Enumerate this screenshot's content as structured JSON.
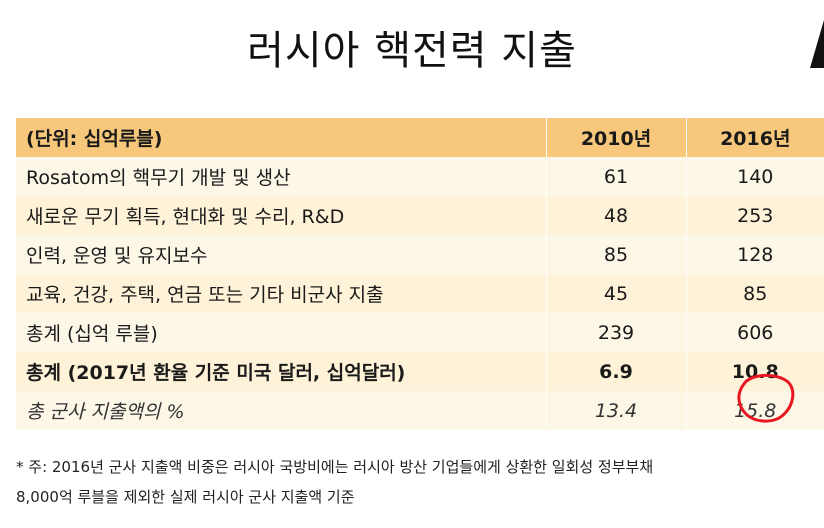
{
  "title": "러시아 핵전력 지출",
  "table": {
    "headers": [
      "(단위: 십억루블)",
      "2010년",
      "2016년"
    ],
    "rows": [
      {
        "label": "Rosatom의 핵무기 개발 및 생산",
        "v2010": "61",
        "v2016": "140"
      },
      {
        "label": "새로운 무기 획득, 현대화 및 수리, R&D",
        "v2010": "48",
        "v2016": "253"
      },
      {
        "label": "인력, 운영 및 유지보수",
        "v2010": "85",
        "v2016": "128"
      },
      {
        "label": "교육, 건강, 주택, 연금 또는 기타 비군사 지출",
        "v2010": "45",
        "v2016": "85"
      },
      {
        "label": "총계 (십억 루블)",
        "v2010": "239",
        "v2016": "606"
      },
      {
        "label": "총계 (2017년 환율 기준 미국 달러, 십억달러)",
        "v2010": "6.9",
        "v2016": "10.8"
      },
      {
        "label": "총 군사 지출액의 %",
        "v2010": "13.4",
        "v2016": "15.8"
      }
    ]
  },
  "footnote": {
    "line1": "* 주: 2016년 군사 지출액 비중은 러시아 국방비에는 러시아 방산 기업들에게 상환한 일회성 정부부채",
    "line2": "8,000억 루블을 제외한 실제 러시아 군사 지출액 기준"
  },
  "colors": {
    "header_bg": "#f7c87c",
    "row_bg": "#fef3d8",
    "annotation": "#e8171f"
  }
}
